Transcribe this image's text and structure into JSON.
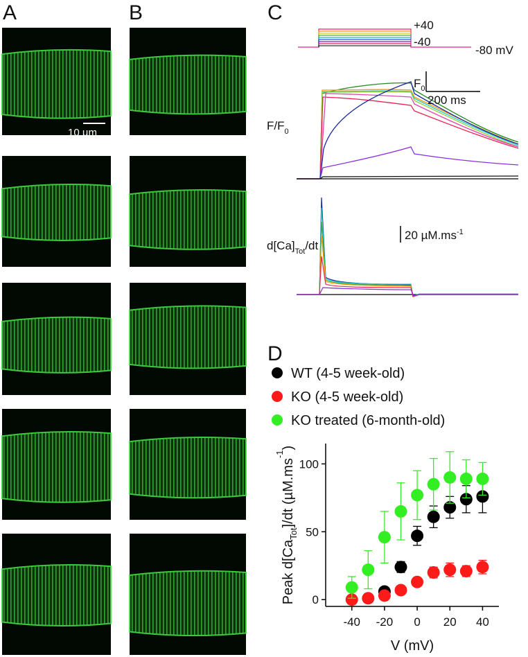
{
  "panels": {
    "a": "A",
    "b": "B",
    "c": "C",
    "d": "D"
  },
  "scale_bar_label": "10 µm",
  "protocol": {
    "top": "+40",
    "bottom": "-40",
    "holding": "-80 mV"
  },
  "fluorescence": {
    "label": [
      "F/F",
      "0"
    ],
    "scale_y": [
      "F",
      "0"
    ],
    "scale_x": "200 ms"
  },
  "derivative": {
    "label": [
      "d[Ca]",
      "Tot",
      "/dt"
    ],
    "scale": [
      "20 µM.ms",
      "-1"
    ]
  },
  "chart_data": {
    "type": "scatter",
    "x": [
      -40,
      -30,
      -20,
      -10,
      0,
      10,
      20,
      30,
      40
    ],
    "series": [
      {
        "name": "WT (4-5 week-old)",
        "color": "#000000",
        "values": [
          null,
          null,
          6,
          24,
          47,
          61,
          68,
          74,
          76
        ],
        "errors": [
          null,
          null,
          2,
          4,
          7,
          8,
          8,
          10,
          12
        ]
      },
      {
        "name": "KO (4-5 week-old)",
        "color": "#ff1a1a",
        "values": [
          0,
          1,
          3,
          7,
          13,
          20,
          22,
          21,
          24
        ],
        "errors": [
          2,
          2,
          2,
          2,
          3,
          4,
          5,
          4,
          5
        ]
      },
      {
        "name": "KO treated (6-month-old)",
        "color": "#33ee22",
        "values": [
          9,
          22,
          46,
          65,
          77,
          85,
          90,
          89,
          89
        ],
        "errors": [
          8,
          14,
          19,
          21,
          18,
          19,
          19,
          14,
          12
        ]
      }
    ],
    "xlabel": "V (mV)",
    "ylabel": [
      "Peak d[Ca",
      "Tot",
      "]/dt (µM.ms",
      "-1",
      ")"
    ],
    "xlim": [
      -56,
      50
    ],
    "ylim": [
      -5,
      115
    ],
    "xticks": [
      -40,
      -20,
      0,
      20,
      40
    ],
    "yticks": [
      0,
      50,
      100
    ],
    "legend": "above"
  }
}
